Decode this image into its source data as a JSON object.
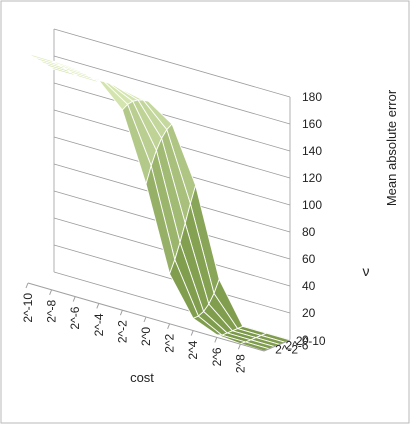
{
  "chart_data": {
    "type": "surface",
    "title": "",
    "xlabel": "cost",
    "ylabel": "ν",
    "zlabel": "Mean absolute error",
    "x_ticks": [
      "2^-10",
      "2^-8",
      "2^-6",
      "2^-4",
      "2^-2",
      "2^0",
      "2^2",
      "2^4",
      "2^6",
      "2^8"
    ],
    "y_ticks": [
      "2^-10",
      "2^-6",
      "2^-2"
    ],
    "z_ticks": [
      0,
      20,
      40,
      60,
      80,
      100,
      120,
      140,
      160,
      180
    ],
    "zlim": [
      0,
      180
    ],
    "grid": true,
    "colors": {
      "surface_low": "#6f8f3a",
      "surface_high": "#e6f4c4",
      "mesh": "#ffffff",
      "frame": "#a0a0a0"
    }
  }
}
